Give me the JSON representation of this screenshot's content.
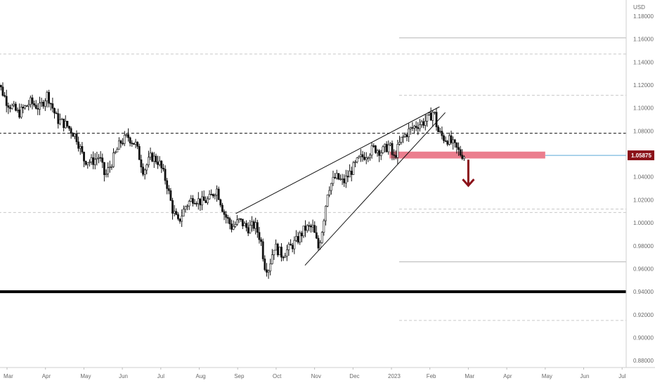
{
  "chart_data": {
    "type": "candlestick",
    "currency": "USD",
    "price_tag": "1.05875",
    "y_tick_labels": [
      "1.18000",
      "1.16000",
      "1.14000",
      "1.12000",
      "1.10000",
      "1.08000",
      "1.06000",
      "1.04000",
      "1.02000",
      "1.00000",
      "0.98000",
      "0.96000",
      "0.94000",
      "0.92000",
      "0.90000",
      "0.88000"
    ],
    "y_ticks": [
      1.18,
      1.16,
      1.14,
      1.12,
      1.1,
      1.08,
      1.06,
      1.04,
      1.02,
      1.0,
      0.98,
      0.96,
      0.94,
      0.92,
      0.9,
      0.88
    ],
    "ylim": [
      0.874,
      1.194
    ],
    "x_ticks": [
      {
        "label": "Mar",
        "month": 0
      },
      {
        "label": "Apr",
        "month": 1
      },
      {
        "label": "May",
        "month": 2
      },
      {
        "label": "Jun",
        "month": 3
      },
      {
        "label": "Jul",
        "month": 4
      },
      {
        "label": "Aug",
        "month": 5
      },
      {
        "label": "Sep",
        "month": 6
      },
      {
        "label": "Oct",
        "month": 7
      },
      {
        "label": "Nov",
        "month": 8
      },
      {
        "label": "Dec",
        "month": 9
      },
      {
        "label": "2023",
        "month": 10
      },
      {
        "label": "Feb",
        "month": 11
      },
      {
        "label": "Mar",
        "month": 12
      },
      {
        "label": "Apr",
        "month": 13
      },
      {
        "label": "May",
        "month": 14
      },
      {
        "label": "Jun",
        "month": 15
      },
      {
        "label": "Jul",
        "month": 16
      }
    ],
    "price_path": [
      {
        "m": -0.35,
        "p": 1.135
      },
      {
        "m": -0.2,
        "p": 1.12
      },
      {
        "m": 0.0,
        "p": 1.105
      },
      {
        "m": 0.3,
        "p": 1.095
      },
      {
        "m": 0.6,
        "p": 1.105
      },
      {
        "m": 0.85,
        "p": 1.1
      },
      {
        "m": 1.05,
        "p": 1.112
      },
      {
        "m": 1.3,
        "p": 1.09
      },
      {
        "m": 1.55,
        "p": 1.085
      },
      {
        "m": 1.8,
        "p": 1.075
      },
      {
        "m": 2.0,
        "p": 1.055
      },
      {
        "m": 2.2,
        "p": 1.053
      },
      {
        "m": 2.4,
        "p": 1.058
      },
      {
        "m": 2.55,
        "p": 1.04
      },
      {
        "m": 2.75,
        "p": 1.055
      },
      {
        "m": 2.95,
        "p": 1.07
      },
      {
        "m": 3.15,
        "p": 1.075
      },
      {
        "m": 3.35,
        "p": 1.068
      },
      {
        "m": 3.55,
        "p": 1.045
      },
      {
        "m": 3.75,
        "p": 1.058
      },
      {
        "m": 3.95,
        "p": 1.053
      },
      {
        "m": 4.15,
        "p": 1.035
      },
      {
        "m": 4.3,
        "p": 1.012
      },
      {
        "m": 4.45,
        "p": 1.0
      },
      {
        "m": 4.65,
        "p": 1.015
      },
      {
        "m": 4.85,
        "p": 1.022
      },
      {
        "m": 5.05,
        "p": 1.018
      },
      {
        "m": 5.25,
        "p": 1.02
      },
      {
        "m": 5.45,
        "p": 1.03
      },
      {
        "m": 5.65,
        "p": 1.008
      },
      {
        "m": 5.85,
        "p": 0.996
      },
      {
        "m": 6.05,
        "p": 1.002
      },
      {
        "m": 6.25,
        "p": 0.995
      },
      {
        "m": 6.45,
        "p": 0.998
      },
      {
        "m": 6.6,
        "p": 0.985
      },
      {
        "m": 6.7,
        "p": 0.963
      },
      {
        "m": 6.8,
        "p": 0.96
      },
      {
        "m": 6.95,
        "p": 0.98
      },
      {
        "m": 7.15,
        "p": 0.972
      },
      {
        "m": 7.35,
        "p": 0.978
      },
      {
        "m": 7.55,
        "p": 0.985
      },
      {
        "m": 7.75,
        "p": 0.995
      },
      {
        "m": 7.95,
        "p": 0.996
      },
      {
        "m": 8.1,
        "p": 0.978
      },
      {
        "m": 8.2,
        "p": 0.995
      },
      {
        "m": 8.35,
        "p": 1.03
      },
      {
        "m": 8.55,
        "p": 1.04
      },
      {
        "m": 8.75,
        "p": 1.035
      },
      {
        "m": 8.95,
        "p": 1.045
      },
      {
        "m": 9.15,
        "p": 1.055
      },
      {
        "m": 9.35,
        "p": 1.06
      },
      {
        "m": 9.55,
        "p": 1.065
      },
      {
        "m": 9.75,
        "p": 1.062
      },
      {
        "m": 9.95,
        "p": 1.068
      },
      {
        "m": 10.05,
        "p": 1.055
      },
      {
        "m": 10.25,
        "p": 1.072
      },
      {
        "m": 10.45,
        "p": 1.08
      },
      {
        "m": 10.65,
        "p": 1.085
      },
      {
        "m": 10.85,
        "p": 1.088
      },
      {
        "m": 11.0,
        "p": 1.092
      },
      {
        "m": 11.1,
        "p": 1.098
      },
      {
        "m": 11.2,
        "p": 1.08
      },
      {
        "m": 11.35,
        "p": 1.074
      },
      {
        "m": 11.5,
        "p": 1.072
      },
      {
        "m": 11.65,
        "p": 1.066
      },
      {
        "m": 11.8,
        "p": 1.06
      },
      {
        "m": 11.9,
        "p": 1.0587
      }
    ],
    "horizontal_levels": [
      {
        "price": 1.078,
        "style": "dashed",
        "color": "#111111",
        "from": -0.35,
        "to": 16.4
      },
      {
        "price": 0.94,
        "style": "solid",
        "color": "#000000",
        "width": 4,
        "from": -0.35,
        "to": 16.4
      },
      {
        "price": 1.147,
        "style": "dashed",
        "color": "#c8c8c8",
        "from": -0.35,
        "to": 16.4
      },
      {
        "price": 1.009,
        "style": "dashed",
        "color": "#c8c8c8",
        "from": -0.35,
        "to": 16.4
      },
      {
        "price": 1.161,
        "style": "solid",
        "color": "#b4b4b4",
        "from": 10.2,
        "to": 16.4
      },
      {
        "price": 0.966,
        "style": "solid",
        "color": "#b4b4b4",
        "from": 10.2,
        "to": 16.4
      },
      {
        "price": 1.111,
        "style": "dashed",
        "color": "#c8c8c8",
        "from": 10.2,
        "to": 16.4
      },
      {
        "price": 1.012,
        "style": "dashed",
        "color": "#c8c8c8",
        "from": 10.2,
        "to": 16.4
      },
      {
        "price": 0.915,
        "style": "dashed",
        "color": "#c8c8c8",
        "from": 10.2,
        "to": 16.4
      },
      {
        "price": 1.0587,
        "style": "solid",
        "color": "#5aa9d6",
        "from": 14.0,
        "to": 16.4
      }
    ],
    "trendlines": [
      {
        "x1": 5.95,
        "y1": 1.008,
        "x2": 11.25,
        "y2": 1.101
      },
      {
        "x1": 7.75,
        "y1": 0.963,
        "x2": 11.4,
        "y2": 1.096
      }
    ],
    "support_zone": {
      "from": 9.95,
      "to": 14.0,
      "low": 1.056,
      "high": 1.062,
      "color": "#e8677a"
    },
    "arrow": {
      "month": 12.0,
      "from_price": 1.055,
      "to_price": 1.033,
      "color": "#8b1219"
    }
  }
}
